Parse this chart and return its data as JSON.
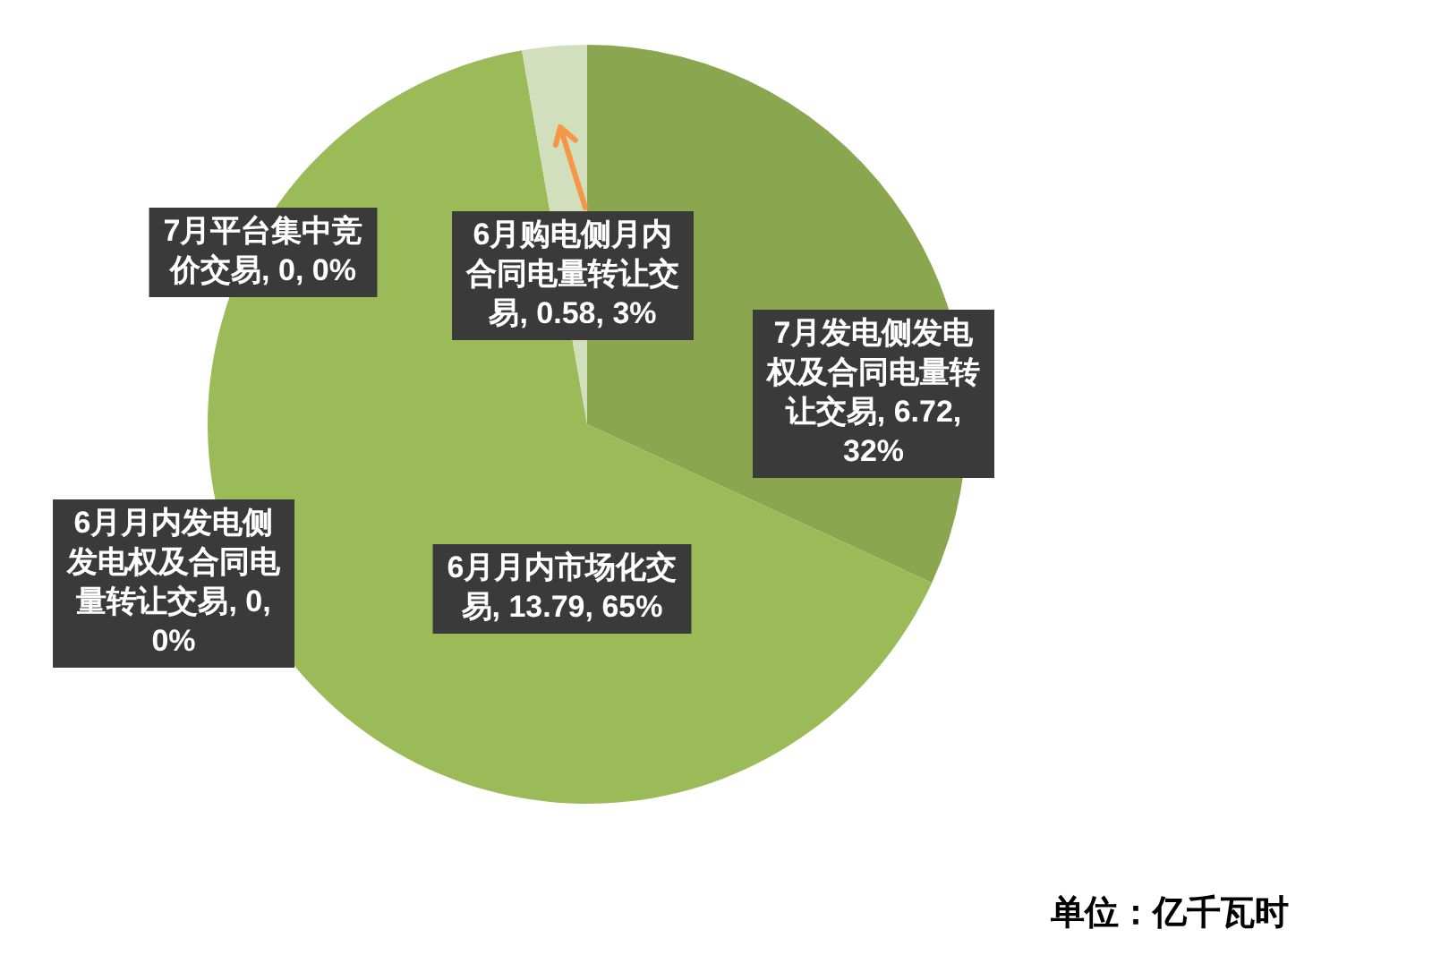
{
  "chart_data": {
    "type": "pie",
    "categories": [
      "7月发电侧发电权及合同电量转让交易",
      "7月平台集中竞价交易",
      "6月月内发电侧发电权及合同电量转让交易",
      "6月月内市场化交易",
      "6月购电侧月内合同电量转让交易"
    ],
    "values": [
      6.72,
      0,
      0,
      13.79,
      0.58
    ],
    "colors": [
      "#8aa64e",
      "#77933c",
      "#c3d69b",
      "#9bbb59",
      "#d2dfbc"
    ],
    "value_labels": [
      ", 6.72, 32%",
      ", 0, 0%",
      ", 0, 0%",
      ", 13.79, 65%",
      ", 0.58, 3%"
    ],
    "annotations": [
      "单位：亿千瓦时"
    ],
    "legend": false
  }
}
